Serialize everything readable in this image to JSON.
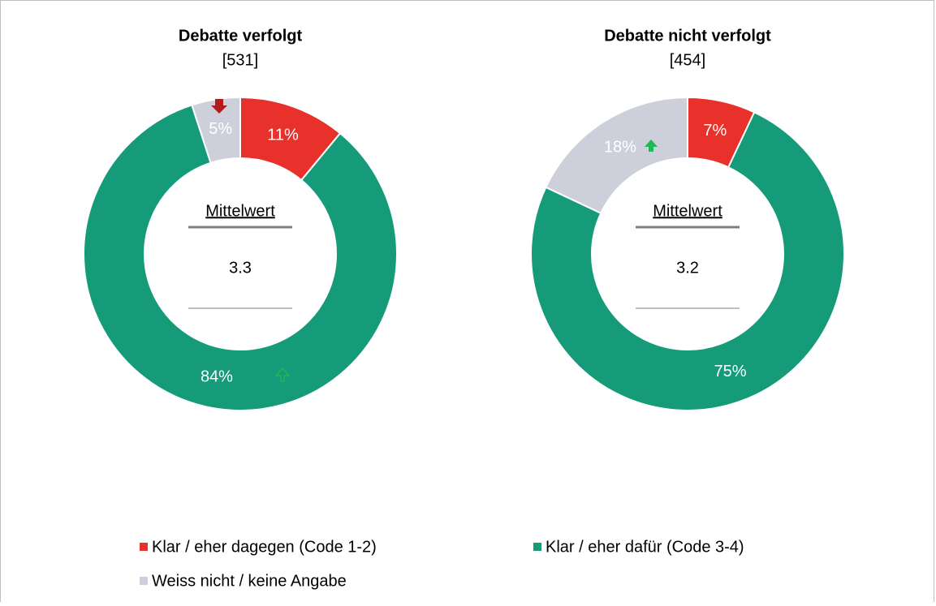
{
  "chart_data": [
    {
      "type": "pie",
      "title": "Debatte verfolgt",
      "subtitle": "[531]",
      "categories": [
        "Klar / eher dagegen (Code 1-2)",
        "Klar / eher dafür (Code 3-4)",
        "Weiss nicht / keine Angabe"
      ],
      "values": [
        11,
        84,
        5
      ],
      "value_labels": [
        "11%",
        "84%",
        "5%"
      ],
      "colors": [
        "#e8312a",
        "#159a7a",
        "#cdd0da"
      ],
      "center_label": "Mittelwert",
      "mean": 3.3
    },
    {
      "type": "pie",
      "title": "Debatte nicht verfolgt",
      "subtitle": "[454]",
      "categories": [
        "Klar / eher dagegen (Code 1-2)",
        "Klar / eher dafür (Code 3-4)",
        "Weiss nicht / keine Angabe"
      ],
      "values": [
        7,
        75,
        18
      ],
      "value_labels": [
        "7%",
        "75%",
        "18%"
      ],
      "colors": [
        "#e8312a",
        "#159a7a",
        "#cdd0da"
      ],
      "center_label": "Mittelwert",
      "mean": 3.2
    }
  ]
}
